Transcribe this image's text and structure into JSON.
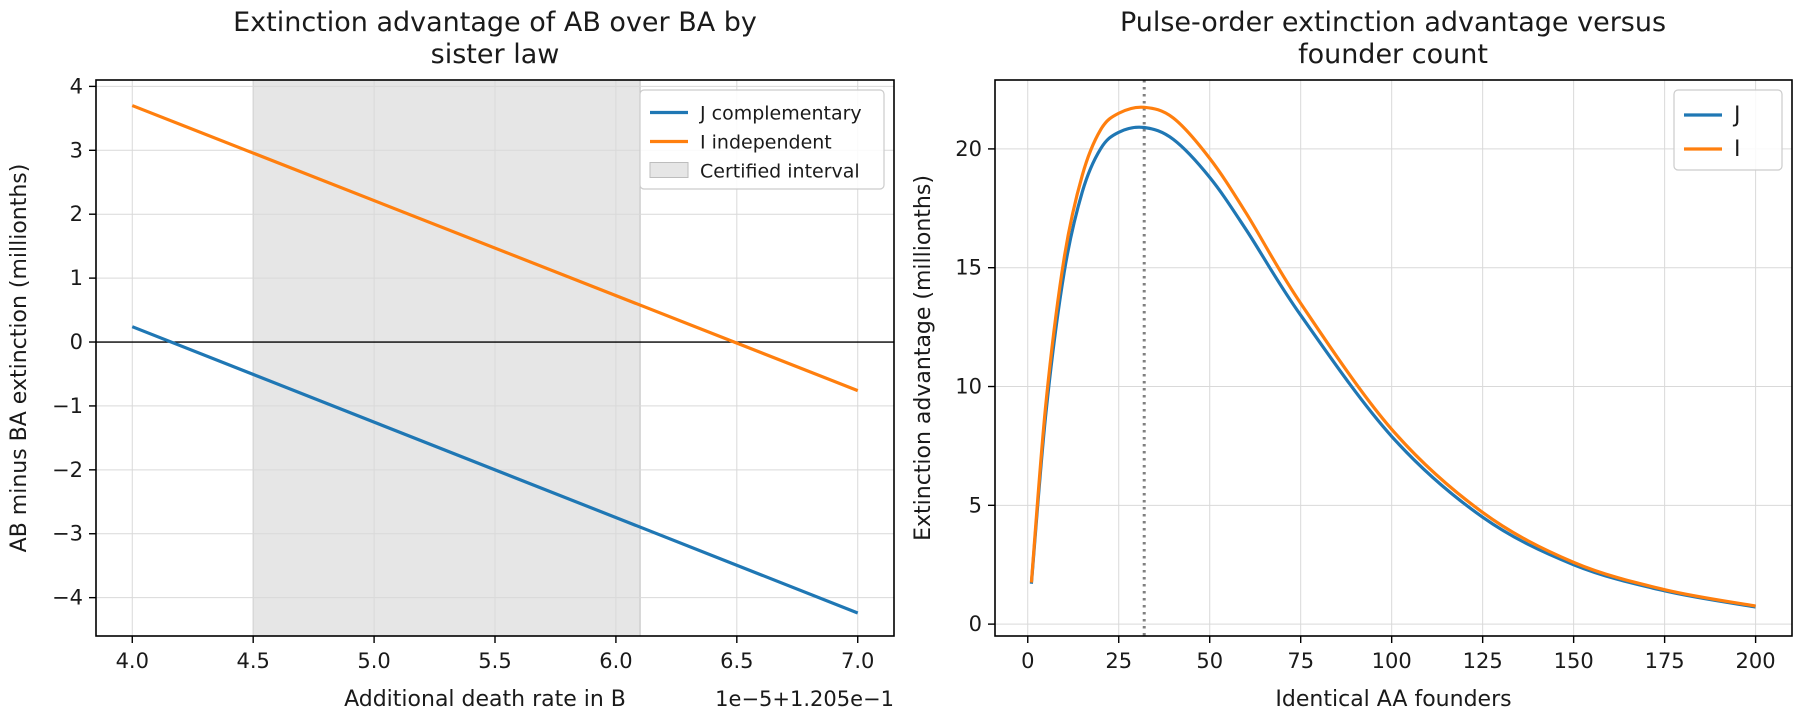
{
  "chart_data": [
    {
      "type": "line",
      "title_lines": [
        "Extinction advantage of AB over BA by",
        "sister law"
      ],
      "xlabel": "Additional death rate in B",
      "x_offset_label": "1e−5+1.205e−1",
      "ylabel": "AB minus BA extinction (millionths)",
      "xlim": [
        3.85,
        7.15
      ],
      "ylim": [
        -4.6,
        4.1
      ],
      "xticks": [
        4.0,
        4.5,
        5.0,
        5.5,
        6.0,
        6.5,
        7.0
      ],
      "xtick_labels": [
        "4.0",
        "4.5",
        "5.0",
        "5.5",
        "6.0",
        "6.5",
        "7.0"
      ],
      "yticks": [
        -4,
        -3,
        -2,
        -1,
        0,
        1,
        2,
        3,
        4
      ],
      "ytick_labels": [
        "−4",
        "−3",
        "−2",
        "−1",
        "0",
        "1",
        "2",
        "3",
        "4"
      ],
      "grid": true,
      "legend_position": "top-right",
      "zero_line": 0,
      "shaded_band": {
        "name": "Certified interval",
        "x": [
          4.5,
          6.1
        ],
        "color": "#e6e6e6"
      },
      "series": [
        {
          "name": "J complementary",
          "color": "#1f77b4",
          "x": [
            4.0,
            7.0
          ],
          "y": [
            0.24,
            -4.24
          ]
        },
        {
          "name": "I independent",
          "color": "#ff7f0e",
          "x": [
            4.0,
            7.0
          ],
          "y": [
            3.7,
            -0.76
          ]
        }
      ]
    },
    {
      "type": "line",
      "title_lines": [
        "Pulse-order extinction advantage versus",
        "founder count"
      ],
      "xlabel": "Identical AA founders",
      "ylabel": "Extinction advantage (millionths)",
      "xlim": [
        -9,
        210
      ],
      "ylim": [
        -0.5,
        22.9
      ],
      "xticks": [
        0,
        25,
        50,
        75,
        100,
        125,
        150,
        175,
        200
      ],
      "xtick_labels": [
        "0",
        "25",
        "50",
        "75",
        "100",
        "125",
        "150",
        "175",
        "200"
      ],
      "yticks": [
        0,
        5,
        10,
        15,
        20
      ],
      "ytick_labels": [
        "0",
        "5",
        "10",
        "15",
        "20"
      ],
      "grid": true,
      "legend_position": "top-right",
      "vline": {
        "x": 32,
        "color": "#808080",
        "style": "dotted"
      },
      "series": [
        {
          "name": "J",
          "color": "#1f77b4",
          "x": [
            1,
            5,
            10,
            15,
            20,
            25,
            32,
            40,
            50,
            60,
            75,
            100,
            125,
            150,
            175,
            200
          ],
          "y": [
            1.7,
            8.9,
            14.8,
            18.2,
            20.0,
            20.7,
            20.9,
            20.4,
            18.8,
            16.6,
            13.0,
            7.9,
            4.5,
            2.5,
            1.4,
            0.72
          ]
        },
        {
          "name": "I",
          "color": "#ff7f0e",
          "x": [
            1,
            5,
            10,
            15,
            20,
            25,
            32,
            40,
            50,
            60,
            75,
            100,
            125,
            150,
            175,
            200
          ],
          "y": [
            1.75,
            9.3,
            15.4,
            18.9,
            20.8,
            21.5,
            21.75,
            21.3,
            19.6,
            17.3,
            13.5,
            8.2,
            4.7,
            2.6,
            1.45,
            0.76
          ]
        }
      ]
    }
  ]
}
